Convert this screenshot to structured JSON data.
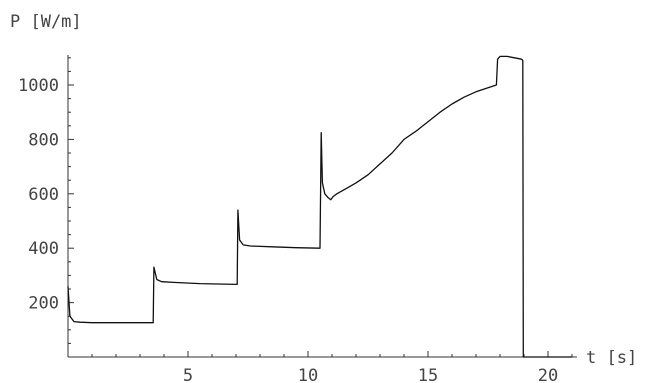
{
  "chart_data": {
    "type": "line",
    "title": "",
    "xlabel": "t [s]",
    "ylabel": "P [W/m]",
    "xlim": [
      0,
      22.5
    ],
    "ylim": [
      0,
      1150
    ],
    "xticks": [
      5,
      10,
      15,
      20
    ],
    "xtick_labels": [
      "5",
      "10",
      "15",
      "20"
    ],
    "yticks": [
      200,
      400,
      600,
      800,
      1000
    ],
    "ytick_labels": [
      "200",
      "400",
      "600",
      "800",
      "1000"
    ],
    "grid": false,
    "legend": "none",
    "series": [
      {
        "color": "#111111",
        "x": [
          0,
          0.08,
          0.25,
          0.5,
          1.0,
          2.0,
          3.0,
          3.55,
          3.58,
          3.7,
          3.9,
          4.5,
          5.5,
          6.5,
          7.05,
          7.08,
          7.15,
          7.3,
          7.6,
          8.5,
          9.5,
          10.5,
          10.55,
          10.6,
          10.7,
          10.85,
          10.95,
          11.05,
          11.2,
          11.6,
          12.0,
          12.5,
          13.0,
          13.5,
          14.0,
          14.5,
          15.0,
          15.5,
          16.0,
          16.5,
          17.0,
          17.5,
          17.85,
          17.9,
          18.0,
          18.3,
          18.6,
          18.9,
          18.95,
          18.97,
          19.5,
          20.0,
          20.5,
          21.0
        ],
        "y": [
          260,
          150,
          130,
          128,
          126,
          126,
          126,
          126,
          330,
          285,
          277,
          274,
          270,
          268,
          267,
          540,
          430,
          412,
          408,
          405,
          402,
          400,
          825,
          640,
          600,
          585,
          578,
          590,
          600,
          620,
          640,
          670,
          710,
          750,
          800,
          830,
          865,
          900,
          930,
          955,
          975,
          990,
          1000,
          1095,
          1105,
          1105,
          1100,
          1095,
          1090,
          0,
          0,
          0,
          0,
          0
        ]
      }
    ]
  }
}
